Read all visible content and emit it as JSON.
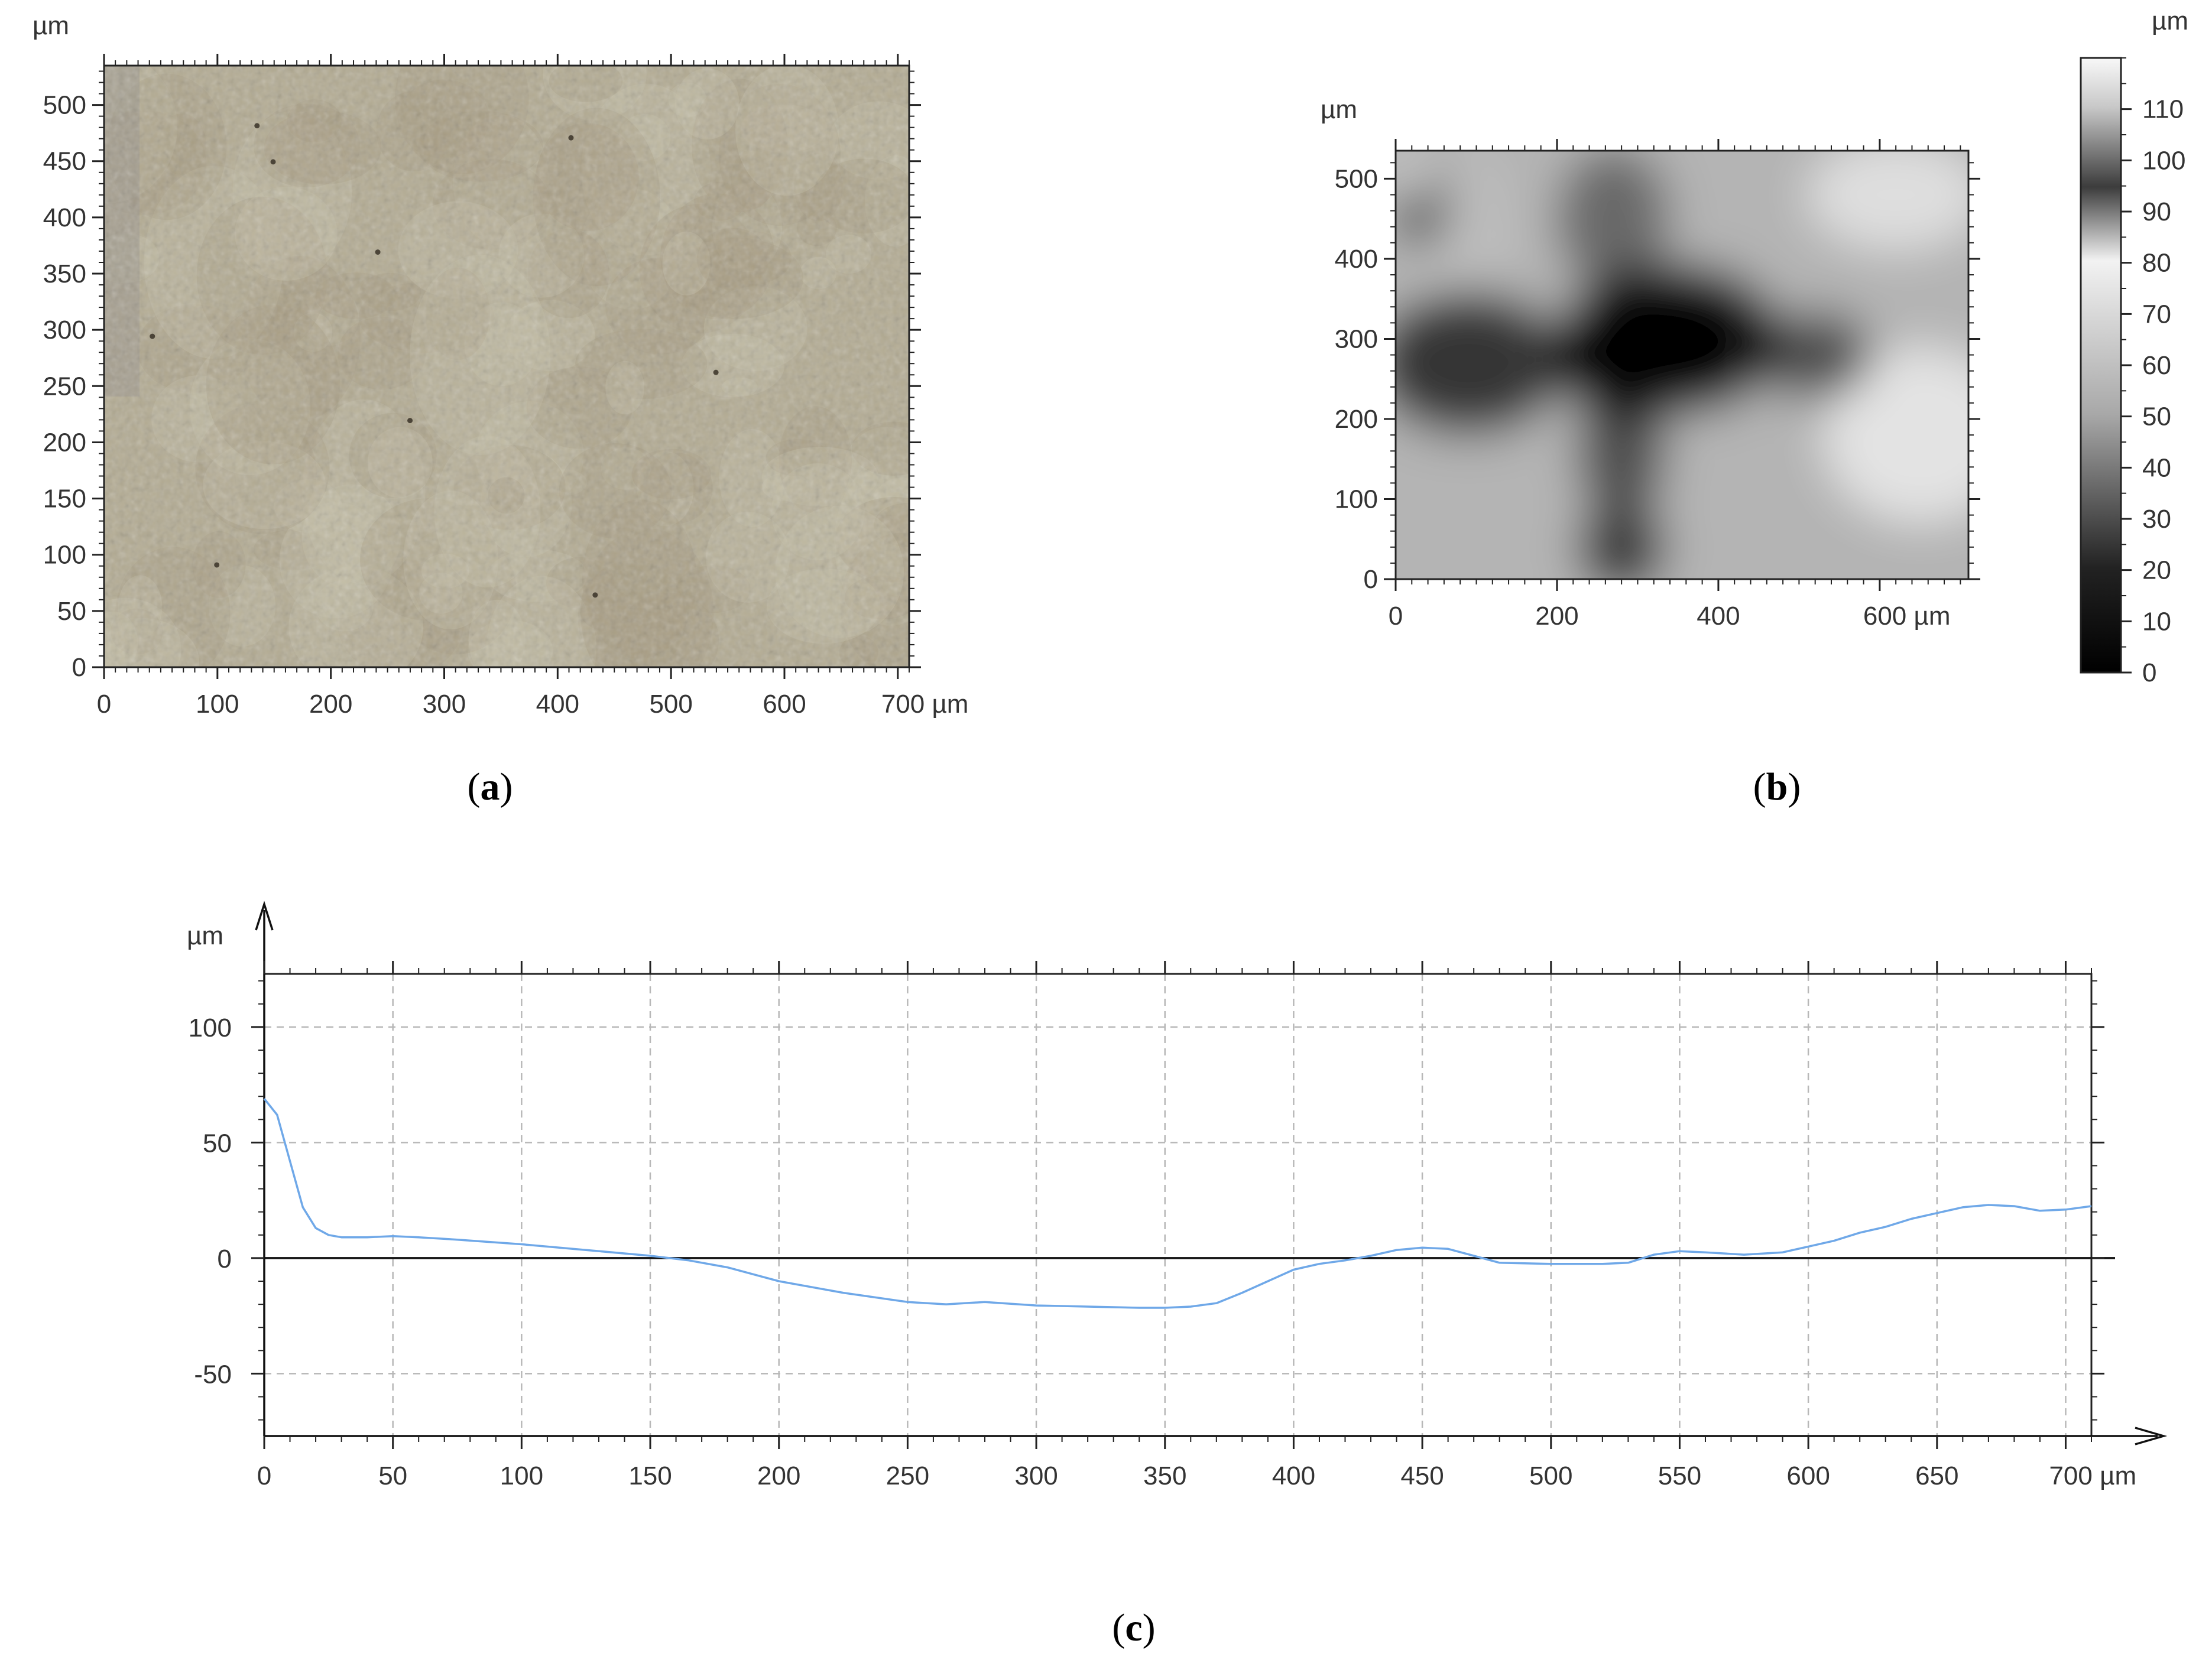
{
  "captions": {
    "a": "a",
    "b": "b",
    "c": "c"
  },
  "chart_data": [
    {
      "type": "image",
      "panel": "a",
      "unit_label": "µm",
      "xlim": [
        0,
        710
      ],
      "ylim": [
        0,
        535
      ],
      "x_ticks": [
        0,
        100,
        200,
        300,
        400,
        500,
        600,
        700
      ],
      "x_tick_labels": [
        "0",
        "100",
        "200",
        "300",
        "400",
        "500",
        "600",
        "700 µm"
      ],
      "y_ticks": [
        0,
        50,
        100,
        150,
        200,
        250,
        300,
        350,
        400,
        450,
        500
      ],
      "y_tick_labels": [
        "0",
        "50",
        "100",
        "150",
        "200",
        "250",
        "300",
        "350",
        "400",
        "450",
        "500"
      ],
      "colors": {
        "surface": "#b3ab92",
        "surface_light": "#c6bfa8",
        "surface_dark": "#a59b80",
        "edge_shadow": "#9a968c"
      }
    },
    {
      "type": "heatmap",
      "panel": "b",
      "unit_label": "µm",
      "xlim": [
        0,
        710
      ],
      "ylim": [
        0,
        535
      ],
      "x_ticks": [
        0,
        200,
        400,
        600
      ],
      "x_tick_labels": [
        "0",
        "200",
        "400",
        "600 µm"
      ],
      "y_ticks": [
        0,
        100,
        200,
        300,
        400,
        500
      ],
      "y_tick_labels": [
        "0",
        "100",
        "200",
        "300",
        "400",
        "500"
      ],
      "colorbar": {
        "unit_label": "µm",
        "range": [
          0,
          120
        ],
        "ticks": [
          0,
          10,
          20,
          30,
          40,
          50,
          60,
          70,
          80,
          90,
          100,
          110
        ],
        "tick_labels": [
          "0",
          "10",
          "20",
          "30",
          "40",
          "50",
          "60",
          "70",
          "80",
          "90",
          "100",
          "110"
        ]
      },
      "colors": {
        "low": "#000000",
        "high": "#ffffff"
      }
    },
    {
      "type": "line",
      "panel": "c",
      "unit_label": "µm",
      "xlim": [
        0,
        710
      ],
      "ylim": [
        -77,
        123
      ],
      "x_ticks": [
        0,
        50,
        100,
        150,
        200,
        250,
        300,
        350,
        400,
        450,
        500,
        550,
        600,
        650,
        700
      ],
      "x_tick_labels": [
        "0",
        "50",
        "100",
        "150",
        "200",
        "250",
        "300",
        "350",
        "400",
        "450",
        "500",
        "550",
        "600",
        "650",
        "700 µm"
      ],
      "y_ticks": [
        -50,
        0,
        50,
        100
      ],
      "y_tick_labels": [
        "-50",
        "0",
        "50",
        "100"
      ],
      "grid": true,
      "zero_line": true,
      "series": [
        {
          "color": "#6fa8e8",
          "x": [
            0,
            5,
            10,
            15,
            20,
            25,
            30,
            40,
            50,
            60,
            75,
            100,
            125,
            150,
            165,
            180,
            200,
            225,
            250,
            265,
            280,
            300,
            320,
            340,
            350,
            360,
            370,
            380,
            390,
            400,
            410,
            420,
            430,
            440,
            450,
            460,
            470,
            480,
            500,
            520,
            530,
            540,
            550,
            560,
            575,
            590,
            600,
            610,
            620,
            630,
            640,
            650,
            660,
            670,
            680,
            690,
            700,
            710
          ],
          "y": [
            69,
            62,
            42,
            22,
            13,
            10,
            9,
            9,
            9.5,
            9,
            8,
            6,
            3.5,
            1,
            -1,
            -4,
            -10,
            -15,
            -19,
            -20,
            -19,
            -20.5,
            -21,
            -21.5,
            -21.5,
            -21,
            -19.5,
            -15,
            -10,
            -5,
            -2.5,
            -1,
            1,
            3.5,
            4.5,
            4,
            1,
            -2,
            -2.5,
            -2.5,
            -2,
            1.5,
            3,
            2.5,
            1.5,
            2.5,
            5,
            7.5,
            11,
            13.5,
            17,
            19.5,
            22,
            23,
            22.5,
            20.5,
            21,
            22.5
          ]
        }
      ]
    }
  ]
}
